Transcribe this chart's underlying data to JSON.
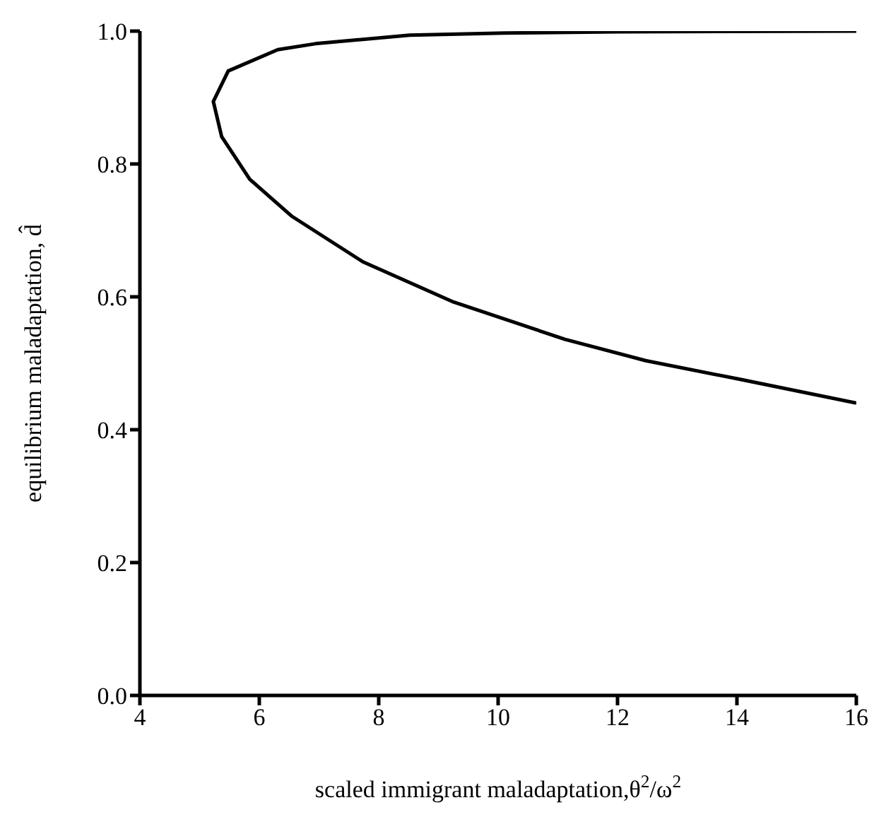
{
  "chart_data": {
    "type": "line",
    "xlabel": "scaled immigrant maladaptation,θ$^{2}$/ω$^{2}$",
    "ylabel": "equilibrium maladaptation, d̂",
    "xlim": [
      4,
      16
    ],
    "ylim": [
      0,
      1
    ],
    "xticks": [
      4,
      6,
      8,
      10,
      12,
      14,
      16
    ],
    "yticks": [
      {
        "value": 0,
        "label": "0.0"
      },
      {
        "value": 0.2,
        "label": "0.2"
      },
      {
        "value": 0.4,
        "label": "0.4"
      },
      {
        "value": 0.6,
        "label": "0.6"
      },
      {
        "value": 0.8,
        "label": "0.8"
      },
      {
        "value": 1,
        "label": "1.0"
      }
    ],
    "grid": false,
    "series": [
      {
        "color": "#000000",
        "x": [
          16,
          12,
          10.1,
          8.52,
          6.94,
          6.31,
          5.48,
          5.23,
          5.37,
          5.84,
          6.55,
          7.73,
          9.23,
          11.12,
          12.47,
          14.04,
          16
        ],
        "values": [
          1.0,
          0.999,
          0.997,
          0.994,
          0.981,
          0.972,
          0.94,
          0.894,
          0.841,
          0.777,
          0.721,
          0.653,
          0.593,
          0.536,
          0.504,
          0.476,
          0.44
        ]
      }
    ]
  }
}
